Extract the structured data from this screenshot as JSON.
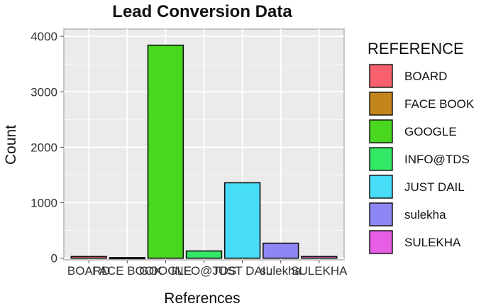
{
  "chart_data": {
    "type": "bar",
    "title": "Lead Conversion Data",
    "xlabel": "References",
    "ylabel": "Count",
    "categories": [
      "BOARD",
      "FACE BOOK",
      "GOOGLE",
      "INFO@TDS",
      "JUST DAIL",
      "sulekha",
      "SULEKHA"
    ],
    "values": [
      30,
      10,
      3840,
      130,
      1360,
      270,
      30
    ],
    "colors": [
      "#f8606e",
      "#c4861a",
      "#49d81f",
      "#33e865",
      "#47dcf7",
      "#8f86f5",
      "#e55ee3"
    ],
    "ylim": [
      -30,
      4130
    ],
    "yticks": [
      0,
      1000,
      2000,
      3000,
      4000
    ],
    "grid": true,
    "legend": {
      "title": "REFERENCE",
      "placement": "right"
    }
  }
}
